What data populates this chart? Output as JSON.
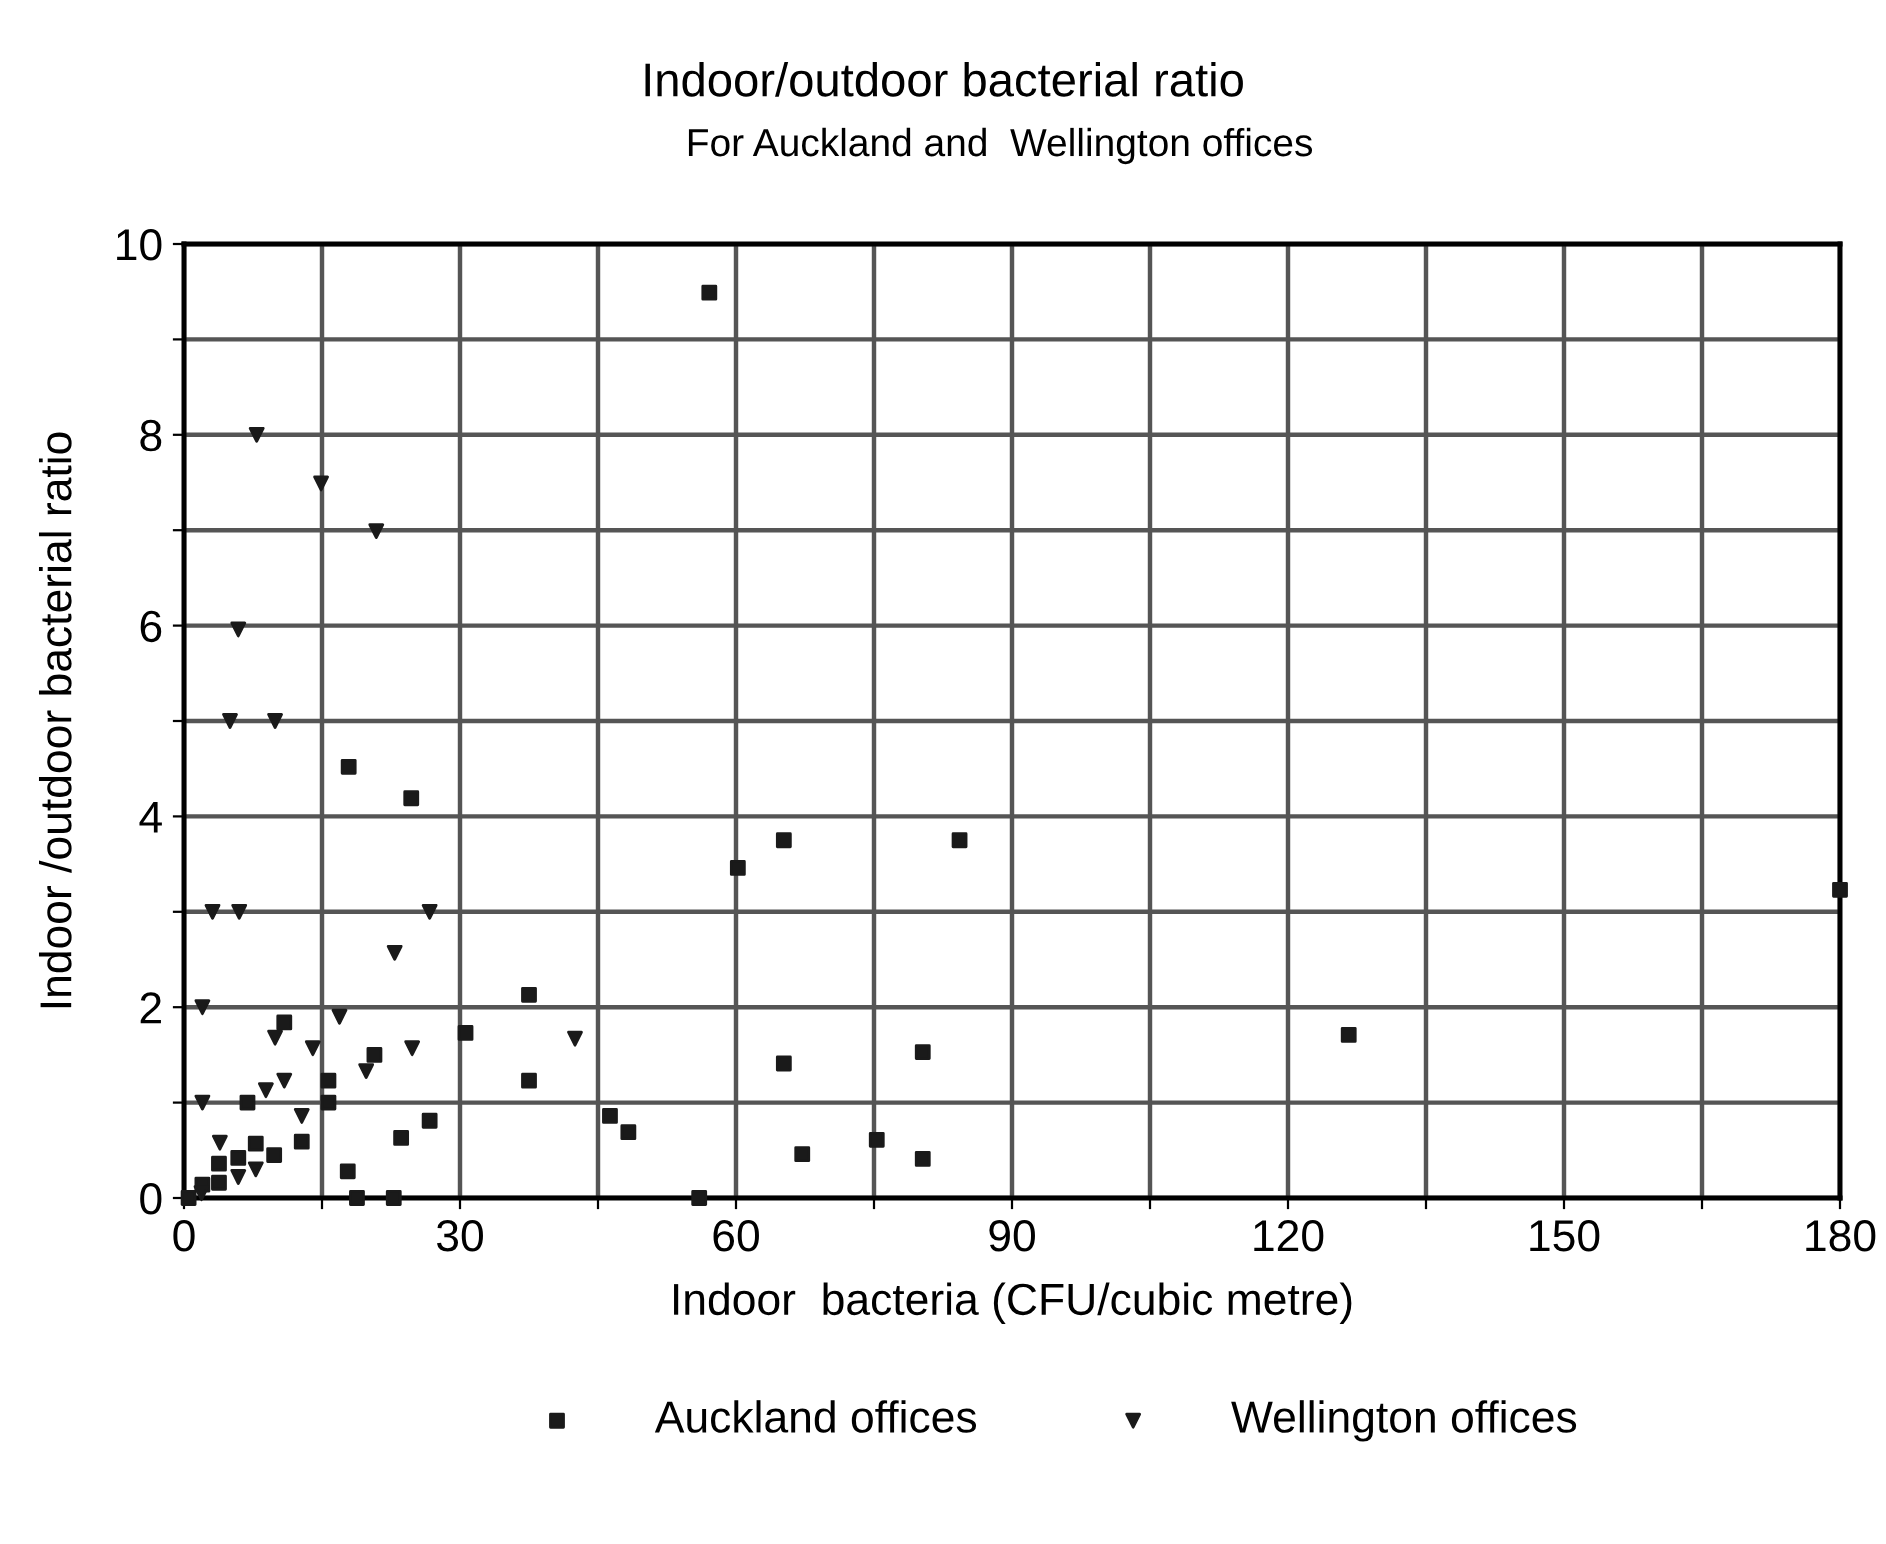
{
  "chart_data": {
    "type": "scatter",
    "title": "Indoor/outdoor bacterial ratio",
    "subtitle": "For Auckland and  Wellington offices",
    "xlabel": "Indoor  bacteria (CFU/cubic metre)",
    "ylabel": "Indoor /outdoor bacterial ratio",
    "xlim": [
      0,
      180
    ],
    "xticks": [
      0,
      {
        "value": 15,
        "label": null
      },
      30,
      {
        "value": 45,
        "label": null
      },
      60,
      {
        "value": 75,
        "label": null
      },
      90,
      {
        "value": 105,
        "label": null
      },
      120,
      {
        "value": 135,
        "label": null
      },
      150,
      {
        "value": 165,
        "label": null
      },
      180
    ],
    "ylim": [
      0,
      10
    ],
    "yticks": [
      0,
      {
        "value": 1,
        "label": null
      },
      2,
      {
        "value": 3,
        "label": null
      },
      4,
      {
        "value": 5,
        "label": null
      },
      6,
      {
        "value": 7,
        "label": null
      },
      8,
      {
        "value": 9,
        "label": null
      },
      10
    ],
    "grid": true,
    "legend": "bottom",
    "series": [
      {
        "name": "Auckland offices",
        "color": "#1a1a1a",
        "marker": "square",
        "x": [
          57.1,
          17.9,
          24.7,
          37.5,
          30.6,
          37.5,
          10.9,
          20.7,
          15.7,
          15.7,
          6.9,
          26.7,
          23.6,
          12.8,
          7.8,
          9.8,
          5.9,
          3.8,
          3.8,
          2.0,
          17.8,
          18.8,
          22.8,
          0.5,
          46.3,
          48.3,
          65.2,
          84.3,
          60.2,
          180,
          126.6,
          65.2,
          80.3,
          67.2,
          75.3,
          80.3,
          56.0
        ],
        "values": [
          9.49,
          4.52,
          4.19,
          2.13,
          1.73,
          1.23,
          1.84,
          1.5,
          1.23,
          1.0,
          1.0,
          0.81,
          0.63,
          0.59,
          0.57,
          0.45,
          0.42,
          0.36,
          0.16,
          0.14,
          0.28,
          0,
          0,
          0,
          0.86,
          0.69,
          3.75,
          3.75,
          3.46,
          3.23,
          1.71,
          1.41,
          1.53,
          0.46,
          0.61,
          0.41,
          0
        ]
      },
      {
        "name": "Wellington offices",
        "color": "#1a1a1a",
        "marker": "triangle",
        "x": [
          7.9,
          14.9,
          20.9,
          5.9,
          5.0,
          9.9,
          3.1,
          6.0,
          26.7,
          22.9,
          2.0,
          16.9,
          9.9,
          14.0,
          24.8,
          42.5,
          19.8,
          10.9,
          8.9,
          2.0,
          12.8,
          3.9,
          7.8,
          5.9,
          1.9
        ],
        "values": [
          8,
          7.49,
          6.99,
          5.96,
          5,
          5,
          3,
          3,
          3,
          2.57,
          2,
          1.9,
          1.68,
          1.57,
          1.57,
          1.67,
          1.33,
          1.23,
          1.13,
          1.0,
          0.86,
          0.58,
          0.3,
          0.22,
          0.05
        ]
      }
    ]
  }
}
